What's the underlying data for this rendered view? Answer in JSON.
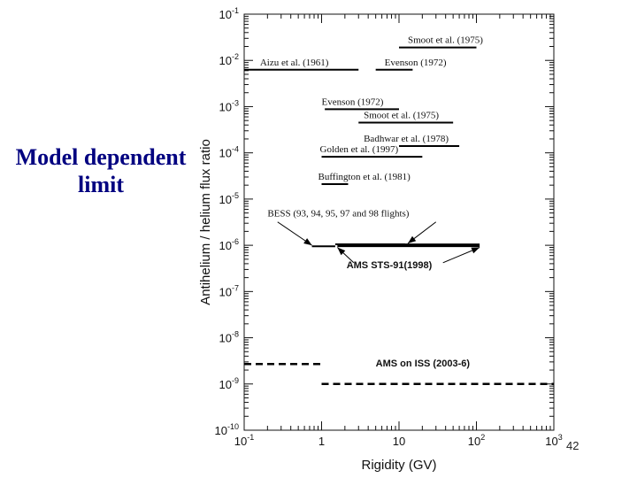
{
  "slide": {
    "caption_lines": [
      "Model dependent",
      "limit"
    ],
    "page_number": "42"
  },
  "chart_data": {
    "type": "line",
    "xlabel": "Rigidity (GV)",
    "ylabel": "Antihelium / helium flux ratio",
    "xscale": "log",
    "yscale": "log",
    "xlim": [
      0.1,
      1000
    ],
    "ylim": [
      1e-10,
      0.1
    ],
    "x_ticks": [
      {
        "value": 0.1,
        "base": "10",
        "exp": "-1"
      },
      {
        "value": 1,
        "base": "1",
        "exp": ""
      },
      {
        "value": 10,
        "base": "10",
        "exp": ""
      },
      {
        "value": 100,
        "base": "10",
        "exp": "2"
      },
      {
        "value": 1000,
        "base": "10",
        "exp": "3"
      }
    ],
    "y_ticks": [
      {
        "value": 1e-10,
        "base": "10",
        "exp": "-10"
      },
      {
        "value": 1e-09,
        "base": "10",
        "exp": "-9"
      },
      {
        "value": 1e-08,
        "base": "10",
        "exp": "-8"
      },
      {
        "value": 1e-07,
        "base": "10",
        "exp": "-7"
      },
      {
        "value": 1e-06,
        "base": "10",
        "exp": "-6"
      },
      {
        "value": 1e-05,
        "base": "10",
        "exp": "-5"
      },
      {
        "value": 0.0001,
        "base": "10",
        "exp": "-4"
      },
      {
        "value": 0.001,
        "base": "10",
        "exp": "-3"
      },
      {
        "value": 0.01,
        "base": "10",
        "exp": "-2"
      },
      {
        "value": 0.1,
        "base": "10",
        "exp": "-1"
      }
    ],
    "grid": false,
    "series": [
      {
        "name": "Smoot et al. (1975)",
        "x": [
          10,
          100
        ],
        "y": [
          0.019,
          0.019
        ],
        "style": "solid"
      },
      {
        "name": "Aizu et al. (1961)",
        "x": [
          0.1,
          3
        ],
        "y": [
          0.0063,
          0.0063
        ],
        "style": "solid"
      },
      {
        "name": "Evenson (1972)",
        "x": [
          5,
          15
        ],
        "y": [
          0.0063,
          0.0063
        ],
        "style": "solid"
      },
      {
        "name": "Evenson (1972)",
        "x": [
          1.1,
          10
        ],
        "y": [
          0.00088,
          0.00088
        ],
        "style": "solid"
      },
      {
        "name": "Smoot et al. (1975)",
        "x": [
          3,
          50
        ],
        "y": [
          0.00045,
          0.00045
        ],
        "style": "solid"
      },
      {
        "name": "Badhwar et al. (1978)",
        "x": [
          10,
          60
        ],
        "y": [
          0.00014,
          0.00014
        ],
        "style": "solid"
      },
      {
        "name": "Golden et al. (1997)",
        "x": [
          1,
          20
        ],
        "y": [
          8.2e-05,
          8.2e-05
        ],
        "style": "solid"
      },
      {
        "name": "Buffington et al. (1981)",
        "x": [
          1,
          2.2
        ],
        "y": [
          2.1e-05,
          2.1e-05
        ],
        "style": "solid"
      },
      {
        "name": "BESS (93, 94, 95, 97 and 98 flights)",
        "x": [
          0.75,
          1.5
        ],
        "y": [
          9.5e-07,
          9.5e-07
        ],
        "style": "solid"
      },
      {
        "name": "BESS (93, 94, 95, 97 and 98 flights)",
        "x": [
          1.5,
          12
        ],
        "y": [
          1.05e-06,
          1.05e-06
        ],
        "style": "solid"
      },
      {
        "name": "AMS STS-91(1998)",
        "x": [
          1.6,
          110
        ],
        "y": [
          1e-06,
          1e-06
        ],
        "style": "thick"
      },
      {
        "name": "AMS on ISS (2003-6)",
        "x": [
          0.1,
          1
        ],
        "y": [
          2.7e-09,
          2.7e-09
        ],
        "style": "dashed"
      },
      {
        "name": "AMS on ISS (2003-6)",
        "x": [
          1,
          1000
        ],
        "y": [
          1e-09,
          1e-09
        ],
        "style": "dashed"
      }
    ],
    "annotations": [
      {
        "text": "Smoot et al. (1975)",
        "x": 13,
        "y": 0.024,
        "style": "serif"
      },
      {
        "text": "Aizu et al. (1961)",
        "x": 0.16,
        "y": 0.0078,
        "style": "serif"
      },
      {
        "text": "Evenson (1972)",
        "x": 6.5,
        "y": 0.0078,
        "style": "serif"
      },
      {
        "text": "Evenson (1972)",
        "x": 1.0,
        "y": 0.0011,
        "style": "serif"
      },
      {
        "text": "Smoot et al. (1975)",
        "x": 3.5,
        "y": 0.00056,
        "style": "serif"
      },
      {
        "text": "Badhwar et al. (1978)",
        "x": 3.5,
        "y": 0.000175,
        "style": "serif"
      },
      {
        "text": "Golden et al. (1997)",
        "x": 0.95,
        "y": 0.000103,
        "style": "serif"
      },
      {
        "text": "Buffington et al. (1981)",
        "x": 0.9,
        "y": 2.65e-05,
        "style": "serif"
      },
      {
        "text": "BESS (93, 94, 95, 97 and 98 flights)",
        "x": 0.2,
        "y": 4.2e-06,
        "style": "serif"
      },
      {
        "text": "AMS STS-91(1998)",
        "x": 2.1,
        "y": 3.2e-07,
        "style": "bold"
      },
      {
        "text": "AMS on ISS (2003-6)",
        "x": 5,
        "y": 2.4e-09,
        "style": "bold"
      }
    ],
    "arrows": [
      {
        "from": [
          0.27,
          3.2e-06
        ],
        "to": [
          0.75,
          1e-06
        ]
      },
      {
        "from": [
          30,
          3.2e-06
        ],
        "to": [
          13,
          1.1e-06
        ]
      },
      {
        "from": [
          2.6,
          4.2e-07
        ],
        "to": [
          1.6,
          9e-07
        ]
      },
      {
        "from": [
          37,
          4.2e-07
        ],
        "to": [
          110,
          9e-07
        ]
      }
    ]
  }
}
